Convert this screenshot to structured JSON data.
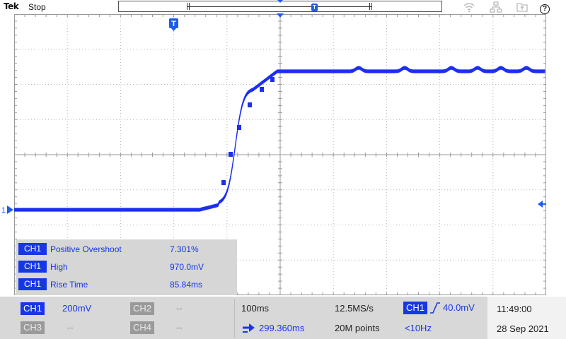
{
  "header": {
    "brand": "Tek",
    "run_status": "Stop",
    "trigger_marker": "T",
    "icons": [
      "wifi-icon",
      "network-icon",
      "folder-icon",
      "help-icon"
    ],
    "help_glyph": "?"
  },
  "display": {
    "trace_color": "#1c2ff0",
    "trigger_flag": "T",
    "channel_marker": "1",
    "divisions_x": 10,
    "divisions_y": 8
  },
  "measurements": [
    {
      "channel": "CH1",
      "name": "Positive Overshoot",
      "value": "7.301%"
    },
    {
      "channel": "CH1",
      "name": "High",
      "value": "970.0mV"
    },
    {
      "channel": "CH1",
      "name": "Rise Time",
      "value": "85.84ms"
    }
  ],
  "channels": {
    "ch1": {
      "label": "CH1",
      "scale": "200mV"
    },
    "ch2": {
      "label": "CH2",
      "scale": "--"
    },
    "ch3": {
      "label": "CH3",
      "scale": "--"
    },
    "ch4": {
      "label": "CH4",
      "scale": "--"
    }
  },
  "horizontal": {
    "scale": "100ms",
    "position": "299.360ms",
    "sample_rate": "12.5MS/s",
    "record_length": "20M points"
  },
  "trigger": {
    "source": "CH1",
    "slope": "rising",
    "level": "40.0mV",
    "frequency": "<10Hz"
  },
  "clock": {
    "time": "11:49:00",
    "date": "28 Sep 2021"
  }
}
